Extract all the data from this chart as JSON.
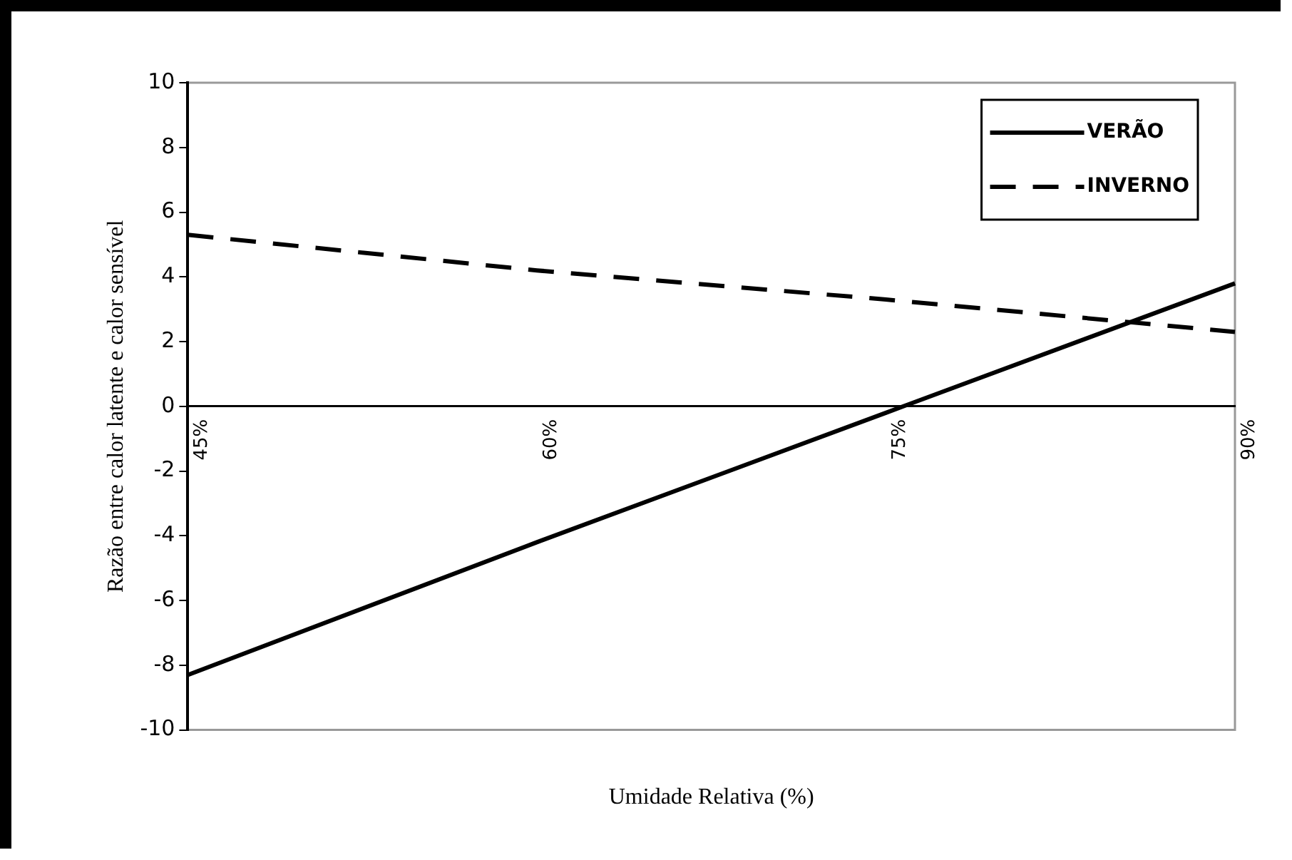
{
  "chart_data": {
    "type": "line",
    "xlabel": "Umidade Relativa (%)",
    "ylabel": "Razão entre calor latente e calor sensível",
    "categories": [
      "45%",
      "60%",
      "75%",
      "90%"
    ],
    "series": [
      {
        "name": "VERÃO",
        "color": "#000000",
        "values": [
          -8.3,
          -4.2,
          -0.2,
          3.8
        ],
        "line_style": "solid"
      },
      {
        "name": "INVERNO",
        "color": "#000000",
        "values": [
          5.3,
          4.2,
          3.3,
          2.3
        ],
        "line_style": "dashed"
      }
    ],
    "ylim": [
      -10,
      10
    ],
    "yticks": [
      -10,
      -8,
      -6,
      -4,
      -2,
      0,
      2,
      4,
      6,
      8,
      10
    ],
    "grid": false,
    "legend": "top right",
    "marker": "none"
  }
}
